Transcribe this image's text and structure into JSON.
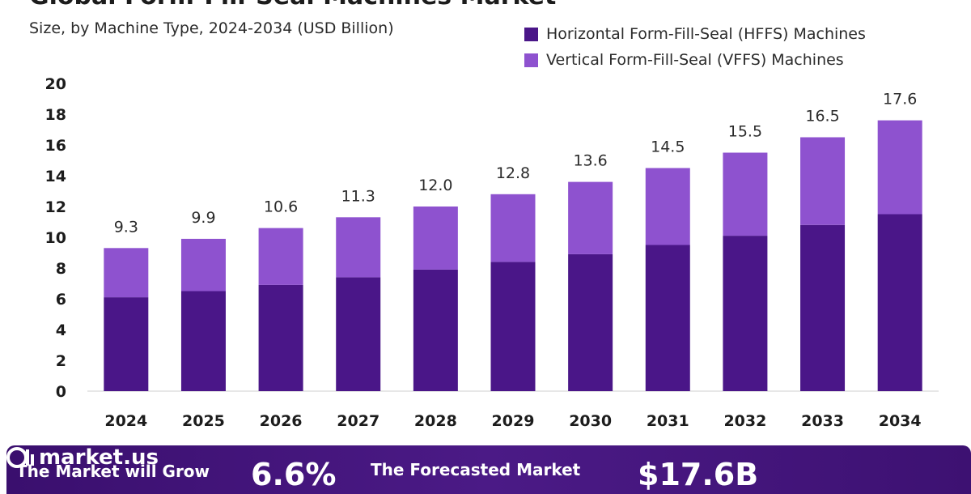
{
  "header": {
    "title": "Global Form-Fill-Seal Machines Market",
    "subtitle": "Size, by Machine Type, 2024-2034 (USD Billion)"
  },
  "legend": [
    {
      "label": "Horizontal Form-Fill-Seal (HFFS) Machines",
      "color": "#4a1688"
    },
    {
      "label": "Vertical Form-Fill-Seal (VFFS) Machines",
      "color": "#8e52cf"
    }
  ],
  "chart_data": {
    "type": "bar",
    "stacked": true,
    "categories": [
      "2024",
      "2025",
      "2026",
      "2027",
      "2028",
      "2029",
      "2030",
      "2031",
      "2032",
      "2033",
      "2034"
    ],
    "series": [
      {
        "name": "Horizontal Form-Fill-Seal (HFFS) Machines",
        "color": "#4a1688",
        "values": [
          6.1,
          6.5,
          6.9,
          7.4,
          7.9,
          8.4,
          8.9,
          9.5,
          10.1,
          10.8,
          11.5
        ]
      },
      {
        "name": "Vertical Form-Fill-Seal (VFFS) Machines",
        "color": "#8e52cf",
        "values": [
          3.2,
          3.4,
          3.7,
          3.9,
          4.1,
          4.4,
          4.7,
          5.0,
          5.4,
          5.7,
          6.1
        ]
      }
    ],
    "totals": [
      "9.3",
      "9.9",
      "10.6",
      "11.3",
      "12.0",
      "12.8",
      "13.6",
      "14.5",
      "15.5",
      "16.5",
      "17.6"
    ],
    "ylim": [
      0,
      20
    ],
    "yticks": [
      "0",
      "2",
      "4",
      "6",
      "8",
      "10",
      "12",
      "14",
      "16",
      "18",
      "20"
    ],
    "grid": false,
    "legend_position": "top-right"
  },
  "footer": {
    "grow_text": "The Market will Grow",
    "cagr_value": "6.6%",
    "forecast_text": "The Forecasted Market",
    "market_value": "$17.6B",
    "brand": "market.us",
    "background": "#3f1275"
  }
}
